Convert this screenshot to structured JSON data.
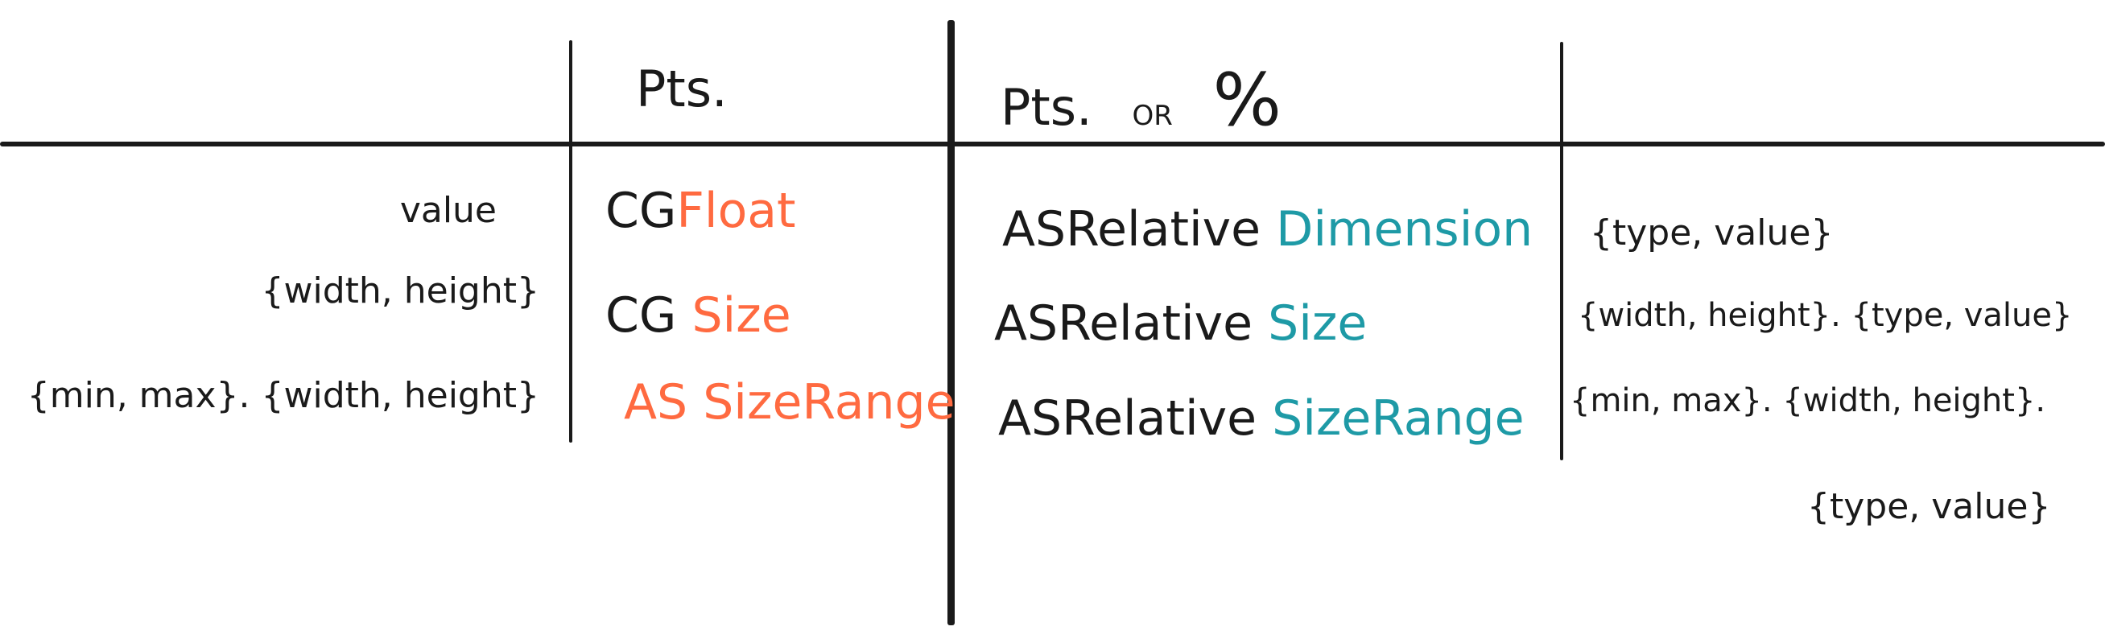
{
  "colors": {
    "ink": "#1a1a1a",
    "orange": "#ff6a40",
    "teal": "#1e9aa6"
  },
  "headers": {
    "col2": "Pts.",
    "col3_a": "Pts.",
    "col3_b": "OR",
    "col3_c": "%"
  },
  "rows": [
    {
      "structure": "value",
      "pts_prefix": "CG",
      "pts_type": "Float",
      "rel_prefix": "ASRelative",
      "rel_type": "Dimension",
      "rel_structure": "{type, value}"
    },
    {
      "structure": "{width, height}",
      "pts_prefix": "CG",
      "pts_type": "Size",
      "rel_prefix": "ASRelative",
      "rel_type": "Size",
      "rel_structure": "{width, height}. {type, value}"
    },
    {
      "structure": "{min, max}. {width, height}",
      "pts_prefix": "",
      "pts_type": "AS SizeRange",
      "rel_prefix": "ASRelative",
      "rel_type": "SizeRange",
      "rel_structure": "{min, max}. {width, height}.",
      "rel_structure_2": "{type, value}"
    }
  ]
}
